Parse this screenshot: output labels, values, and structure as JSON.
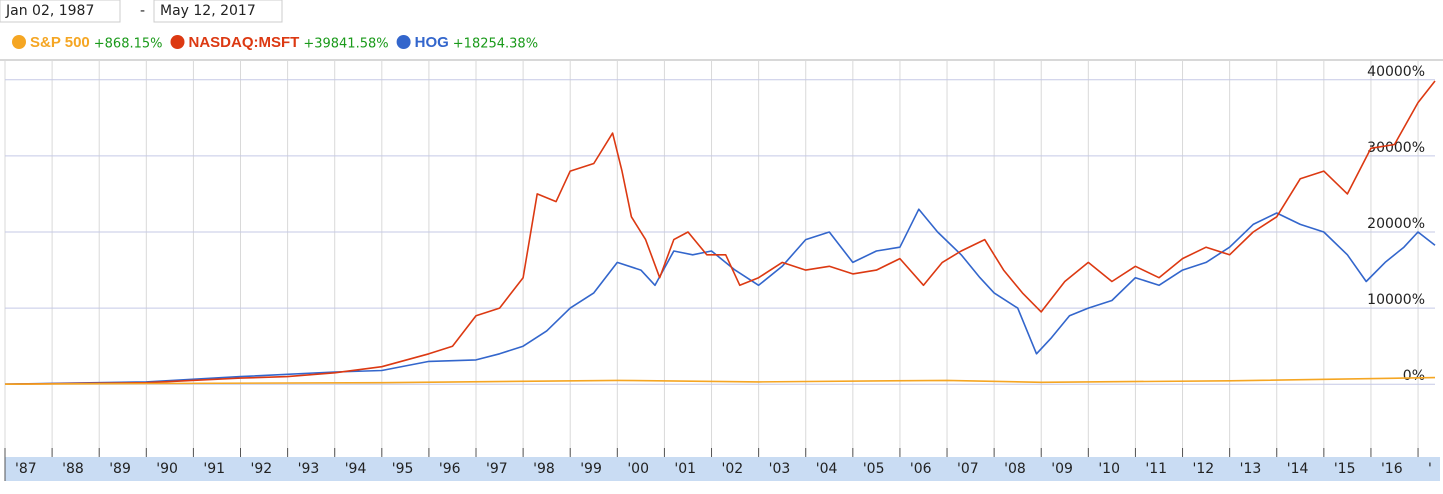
{
  "chart_data": {
    "type": "line",
    "date_from": "Jan 02, 1987",
    "date_separator": "-",
    "date_to": "May 12, 2017",
    "xlim": [
      1987,
      2017.36
    ],
    "ylim": [
      -9300,
      42600
    ],
    "xticks": [
      {
        "value": 1987,
        "label": "'87"
      },
      {
        "value": 1988,
        "label": "'88"
      },
      {
        "value": 1989,
        "label": "'89"
      },
      {
        "value": 1990,
        "label": "'90"
      },
      {
        "value": 1991,
        "label": "'91"
      },
      {
        "value": 1992,
        "label": "'92"
      },
      {
        "value": 1993,
        "label": "'93"
      },
      {
        "value": 1994,
        "label": "'94"
      },
      {
        "value": 1995,
        "label": "'95"
      },
      {
        "value": 1996,
        "label": "'96"
      },
      {
        "value": 1997,
        "label": "'97"
      },
      {
        "value": 1998,
        "label": "'98"
      },
      {
        "value": 1999,
        "label": "'99"
      },
      {
        "value": 2000,
        "label": "'00"
      },
      {
        "value": 2001,
        "label": "'01"
      },
      {
        "value": 2002,
        "label": "'02"
      },
      {
        "value": 2003,
        "label": "'03"
      },
      {
        "value": 2004,
        "label": "'04"
      },
      {
        "value": 2005,
        "label": "'05"
      },
      {
        "value": 2006,
        "label": "'06"
      },
      {
        "value": 2007,
        "label": "'07"
      },
      {
        "value": 2008,
        "label": "'08"
      },
      {
        "value": 2009,
        "label": "'09"
      },
      {
        "value": 2010,
        "label": "'10"
      },
      {
        "value": 2011,
        "label": "'11"
      },
      {
        "value": 2012,
        "label": "'12"
      },
      {
        "value": 2013,
        "label": "'13"
      },
      {
        "value": 2014,
        "label": "'14"
      },
      {
        "value": 2015,
        "label": "'15"
      },
      {
        "value": 2016,
        "label": "'16"
      },
      {
        "value": 2017,
        "label": "'"
      }
    ],
    "yticks": [
      {
        "value": 0,
        "label": "0%"
      },
      {
        "value": 10000,
        "label": "10000%"
      },
      {
        "value": 20000,
        "label": "20000%"
      },
      {
        "value": 30000,
        "label": "30000%"
      },
      {
        "value": 40000,
        "label": "40000%"
      }
    ],
    "series": [
      {
        "name": "S&P 500",
        "change": "+868.15%",
        "color": "#f5a623",
        "x": [
          1987,
          1990,
          1995,
          2000,
          2003,
          2007,
          2009,
          2013,
          2017.36
        ],
        "values": [
          0,
          100,
          200,
          500,
          300,
          500,
          250,
          450,
          868.15
        ]
      },
      {
        "name": "NASDAQ:MSFT",
        "change": "+39841.58%",
        "color": "#dc3912",
        "x": [
          1987,
          1990,
          1992,
          1993,
          1994,
          1995,
          1996,
          1996.5,
          1997,
          1997.5,
          1998,
          1998.3,
          1998.7,
          1999,
          1999.5,
          1999.9,
          2000.1,
          2000.3,
          2000.6,
          2000.9,
          2001.2,
          2001.5,
          2001.9,
          2002.3,
          2002.6,
          2003,
          2003.5,
          2004,
          2004.5,
          2005,
          2005.5,
          2006,
          2006.5,
          2006.9,
          2007.3,
          2007.8,
          2008.2,
          2008.6,
          2009,
          2009.5,
          2010,
          2010.5,
          2011,
          2011.5,
          2012,
          2012.5,
          2013,
          2013.5,
          2014,
          2014.5,
          2015,
          2015.5,
          2016,
          2016.5,
          2017,
          2017.36
        ],
        "values": [
          0,
          200,
          800,
          1000,
          1500,
          2300,
          4000,
          5000,
          9000,
          10000,
          14000,
          25000,
          24000,
          28000,
          29000,
          33000,
          28000,
          22000,
          19000,
          14000,
          19000,
          20000,
          17000,
          17000,
          13000,
          14000,
          16000,
          15000,
          15500,
          14500,
          15000,
          16500,
          13000,
          16000,
          17500,
          19000,
          15000,
          12000,
          9500,
          13500,
          16000,
          13500,
          15500,
          14000,
          16500,
          18000,
          17000,
          20000,
          22000,
          27000,
          28000,
          25000,
          31000,
          31500,
          37000,
          39841.58
        ]
      },
      {
        "name": "HOG",
        "change": "+18254.38%",
        "color": "#3366cc",
        "x": [
          1987,
          1990,
          1992,
          1994,
          1995,
          1996,
          1997,
          1997.5,
          1998,
          1998.5,
          1999,
          1999.5,
          2000,
          2000.5,
          2000.8,
          2001.2,
          2001.6,
          2002,
          2002.5,
          2003,
          2003.5,
          2004,
          2004.5,
          2005,
          2005.5,
          2006,
          2006.4,
          2006.8,
          2007.3,
          2007.7,
          2008,
          2008.5,
          2008.9,
          2009.2,
          2009.6,
          2010,
          2010.5,
          2011,
          2011.5,
          2012,
          2012.5,
          2013,
          2013.5,
          2014,
          2014.5,
          2015,
          2015.5,
          2015.9,
          2016.3,
          2016.7,
          2017,
          2017.36
        ],
        "values": [
          0,
          300,
          1000,
          1600,
          1800,
          3000,
          3200,
          4000,
          5000,
          7000,
          10000,
          12000,
          16000,
          15000,
          13000,
          17500,
          17000,
          17500,
          15000,
          13000,
          15500,
          19000,
          20000,
          16000,
          17500,
          18000,
          23000,
          20000,
          17000,
          14000,
          12000,
          10000,
          4000,
          6000,
          9000,
          10000,
          11000,
          14000,
          13000,
          15000,
          16000,
          18000,
          21000,
          22500,
          21000,
          20000,
          17000,
          13500,
          16000,
          18000,
          20000,
          18254.38
        ]
      }
    ],
    "grid": true
  }
}
